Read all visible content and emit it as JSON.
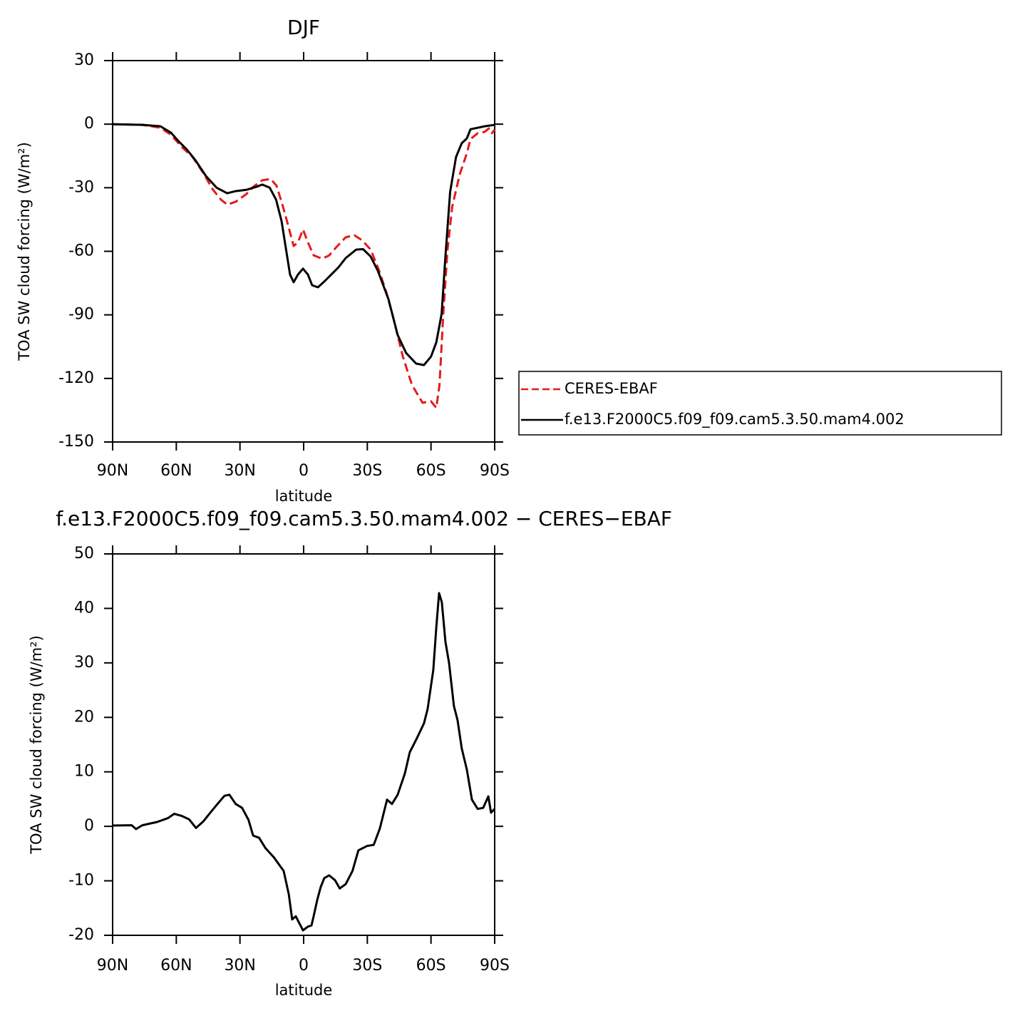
{
  "chart_data": [
    {
      "type": "line",
      "title": "DJF",
      "xlabel": "latitude",
      "ylabel": "TOA SW cloud forcing (W/m²)",
      "xlim": [
        90,
        -90
      ],
      "xticks": [
        {
          "value": 90,
          "label": "90N"
        },
        {
          "value": 60,
          "label": "60N"
        },
        {
          "value": 30,
          "label": "30N"
        },
        0,
        {
          "value": -30,
          "label": "30S"
        },
        {
          "value": -60,
          "label": "60S"
        },
        {
          "value": -90,
          "label": "90S"
        }
      ],
      "ylim": [
        -150,
        30
      ],
      "yticks": [
        -150,
        -120,
        -90,
        -60,
        -30,
        0,
        30
      ],
      "series": [
        {
          "name": "CERES-EBAF",
          "color": "#e41a1c",
          "dashed": true,
          "x": [
            90,
            76,
            67.5,
            62.5,
            57.4,
            52.4,
            47.3,
            43,
            39,
            36,
            32,
            27,
            23.8,
            19.5,
            15.5,
            12.8,
            9.7,
            7,
            4.7,
            2.7,
            0.3,
            -2,
            -4.7,
            -8.7,
            -12,
            -15.4,
            -19.8,
            -23.8,
            -27.5,
            -31.6,
            -35.6,
            -39,
            -42.6,
            -46.7,
            -51,
            -56,
            -60,
            -62.5,
            -64,
            -65.8,
            -67.8,
            -70,
            -73.5,
            -76.9,
            -78.6,
            -82,
            -85.3,
            -87.3,
            -88.7,
            -90
          ],
          "values": [
            0,
            -0.3,
            -1.7,
            -5,
            -10.8,
            -15.4,
            -23,
            -30.6,
            -35.6,
            -38,
            -36.6,
            -33,
            -29.6,
            -26.5,
            -25.9,
            -29,
            -39,
            -49,
            -57.5,
            -55.8,
            -49.7,
            -55.8,
            -61.9,
            -63.5,
            -62,
            -58,
            -53.4,
            -52.4,
            -54.8,
            -59.2,
            -69.3,
            -79.4,
            -92.8,
            -109.6,
            -123,
            -131.5,
            -130.8,
            -133.9,
            -123,
            -89.5,
            -59,
            -39,
            -23.8,
            -13.7,
            -7,
            -4.3,
            -3.6,
            -2,
            -4.3,
            -2.6
          ]
        },
        {
          "name": "f.e13.F2000C5.f09_f09.cam5.3.50.mam4.002",
          "color": "#000000",
          "dashed": false,
          "x": [
            90,
            76,
            67.5,
            62.5,
            59,
            55,
            51,
            46,
            41,
            36,
            32,
            27,
            22,
            19.5,
            16,
            13,
            10.4,
            8,
            6.4,
            4.7,
            2.7,
            0.3,
            -2,
            -4,
            -6.7,
            -9.7,
            -13,
            -16.4,
            -19.8,
            -24.8,
            -28,
            -31.6,
            -35,
            -40,
            -44.3,
            -48.3,
            -53,
            -56.7,
            -60,
            -62.5,
            -65,
            -66.8,
            -69,
            -71.8,
            -74.5,
            -76.9,
            -78.6,
            -82,
            -85.3,
            -90
          ],
          "values": [
            0,
            -0.3,
            -1,
            -4,
            -8,
            -12,
            -17,
            -24.5,
            -30,
            -32.6,
            -31.6,
            -31,
            -29.5,
            -28.5,
            -30,
            -35.6,
            -45.7,
            -61,
            -71,
            -74.6,
            -71,
            -68.2,
            -71,
            -76,
            -77,
            -74.3,
            -71,
            -67.6,
            -63.2,
            -59.2,
            -59,
            -62.5,
            -69.3,
            -82.7,
            -99.5,
            -108,
            -113,
            -113.7,
            -109.7,
            -103,
            -89.5,
            -62.5,
            -32,
            -15.5,
            -9,
            -6.7,
            -2.4,
            -1.7,
            -1,
            -0.3
          ]
        }
      ]
    },
    {
      "type": "line",
      "title": "f.e13.F2000C5.f09_f09.cam5.3.50.mam4.002 − CERES−EBAF",
      "xlabel": "latitude",
      "ylabel": "TOA SW cloud forcing (W/m²)",
      "xlim": [
        90,
        -90
      ],
      "xticks": [
        {
          "value": 90,
          "label": "90N"
        },
        {
          "value": 60,
          "label": "60N"
        },
        {
          "value": 30,
          "label": "30N"
        },
        0,
        {
          "value": -30,
          "label": "30S"
        },
        {
          "value": -60,
          "label": "60S"
        },
        {
          "value": -90,
          "label": "90S"
        }
      ],
      "ylim": [
        -20,
        50
      ],
      "yticks": [
        -20,
        -10,
        0,
        10,
        20,
        30,
        40,
        50
      ],
      "series": [
        {
          "color": "#000000",
          "dashed": false,
          "x": [
            90,
            81,
            79,
            76,
            69,
            64,
            61,
            57.4,
            54,
            50.7,
            47.3,
            44,
            40.6,
            37.3,
            35,
            32,
            29,
            26,
            23.8,
            21,
            18,
            14,
            9.4,
            7,
            5.4,
            3.7,
            2,
            0.3,
            -2,
            -3.7,
            -4.7,
            -6.4,
            -8,
            -9.7,
            -12,
            -14.8,
            -17,
            -19.8,
            -23,
            -25.8,
            -29.9,
            -33,
            -35.9,
            -39.3,
            -41.6,
            -44.3,
            -47.7,
            -50,
            -53.4,
            -56.7,
            -58.4,
            -61.1,
            -62.5,
            -63.8,
            -65.1,
            -66.8,
            -68.5,
            -70.8,
            -72.5,
            -74.5,
            -76.9,
            -79.3,
            -82,
            -84.6,
            -87,
            -88.3,
            -90
          ],
          "values": [
            0.15,
            0.2,
            -0.5,
            0.2,
            0.8,
            1.5,
            2.3,
            1.9,
            1.3,
            -0.3,
            0.9,
            2.5,
            4.1,
            5.6,
            5.8,
            4.1,
            3.4,
            1.2,
            -1.7,
            -2.1,
            -4,
            -5.7,
            -8.2,
            -12.5,
            -17.1,
            -16.5,
            -17.8,
            -19.1,
            -18.4,
            -18.2,
            -16.5,
            -13.5,
            -11.2,
            -9.5,
            -9,
            -9.9,
            -11.4,
            -10.6,
            -8.2,
            -4.4,
            -3.6,
            -3.4,
            -0.4,
            4.9,
            4.1,
            5.8,
            9.7,
            13.6,
            16.2,
            18.9,
            21.5,
            28.7,
            36.5,
            42.8,
            41.1,
            33.9,
            30,
            22.1,
            19.5,
            14.3,
            10.4,
            4.9,
            3.2,
            3.4,
            5.5,
            2.5,
            3.2
          ]
        }
      ]
    }
  ]
}
